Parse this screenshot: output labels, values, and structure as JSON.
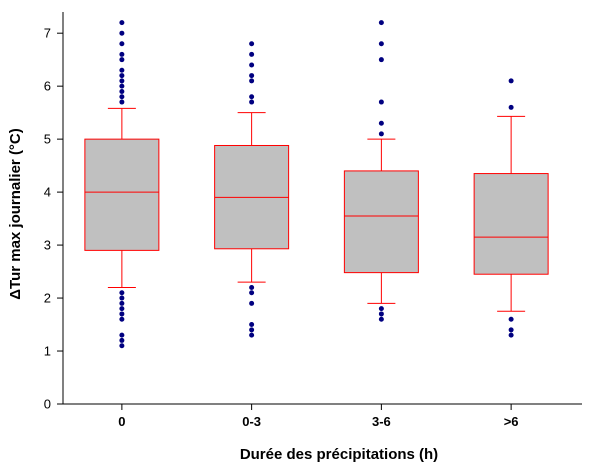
{
  "chart_data": {
    "type": "box",
    "title": "",
    "xlabel": "Durée des précipitations (h)",
    "ylabel": "ΔTur max journalier (°C)",
    "ylim": [
      0,
      7.4
    ],
    "yticks": [
      0,
      1,
      2,
      3,
      4,
      5,
      6,
      7
    ],
    "grid": false,
    "colors": {
      "box_fill": "#c0c0c0",
      "box_stroke": "#ff0000",
      "outlier": "#000080",
      "axis": "#000000"
    },
    "categories": [
      "0",
      "0-3",
      "3-6",
      ">6"
    ],
    "boxes": [
      {
        "category": "0",
        "whisker_low": 2.2,
        "q1": 2.9,
        "median": 4.0,
        "q3": 5.0,
        "whisker_high": 5.58,
        "outliers": [
          1.1,
          1.2,
          1.3,
          1.6,
          1.7,
          1.8,
          1.9,
          2.0,
          2.1,
          5.7,
          5.8,
          5.9,
          6.0,
          6.1,
          6.2,
          6.3,
          6.5,
          6.6,
          6.8,
          7.0,
          7.2
        ]
      },
      {
        "category": "0-3",
        "whisker_low": 2.3,
        "q1": 2.93,
        "median": 3.9,
        "q3": 4.88,
        "whisker_high": 5.5,
        "outliers": [
          1.3,
          1.4,
          1.5,
          1.9,
          2.1,
          2.2,
          5.7,
          5.8,
          6.1,
          6.2,
          6.4,
          6.6,
          6.8
        ]
      },
      {
        "category": "3-6",
        "whisker_low": 1.9,
        "q1": 2.48,
        "median": 3.55,
        "q3": 4.4,
        "whisker_high": 5.0,
        "outliers": [
          1.6,
          1.7,
          1.8,
          5.1,
          5.3,
          5.7,
          6.5,
          6.8,
          7.2
        ]
      },
      {
        "category": ">6",
        "whisker_low": 1.75,
        "q1": 2.45,
        "median": 3.15,
        "q3": 4.35,
        "whisker_high": 5.43,
        "outliers": [
          1.3,
          1.4,
          1.6,
          5.6,
          6.1
        ]
      }
    ]
  }
}
